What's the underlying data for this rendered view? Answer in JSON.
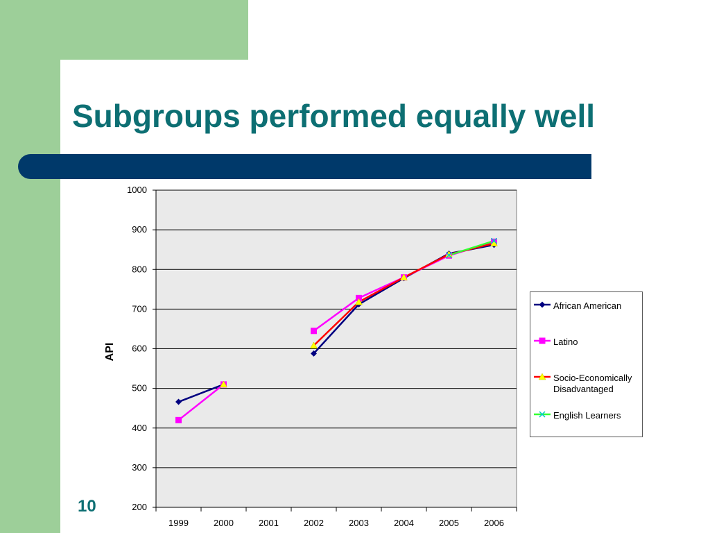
{
  "slide": {
    "title": "Subgroups performed equally well",
    "number": "10"
  },
  "colors": {
    "accent_green": "#9dcf99",
    "title_teal": "#0d6f73",
    "bar_navy": "#00396a",
    "plot_bg": "#eaeaea"
  },
  "chart_data": {
    "type": "line",
    "ylabel": "API",
    "xlabel": "",
    "ylim": [
      200,
      1000
    ],
    "yticks": [
      200,
      300,
      400,
      500,
      600,
      700,
      800,
      900,
      1000
    ],
    "categories": [
      "1999",
      "2000",
      "2001",
      "2002",
      "2003",
      "2004",
      "2005",
      "2006"
    ],
    "grid": true,
    "legend_position": "right",
    "series": [
      {
        "name": "African American",
        "color": "#000080",
        "marker": "diamond",
        "values": [
          466,
          510,
          null,
          588,
          712,
          778,
          840,
          862
        ]
      },
      {
        "name": "Latino",
        "color": "#ff00ff",
        "marker": "square",
        "values": [
          420,
          510,
          null,
          645,
          728,
          780,
          835,
          870
        ]
      },
      {
        "name": "Socio-Economically Disadvantaged",
        "color": "#ff0000",
        "marker": "triangle",
        "values": [
          null,
          510,
          null,
          608,
          718,
          780,
          838,
          866
        ]
      },
      {
        "name": "English Learners",
        "color": "#33ff33",
        "marker": "x",
        "values": [
          null,
          null,
          null,
          null,
          null,
          null,
          836,
          872
        ]
      }
    ]
  }
}
